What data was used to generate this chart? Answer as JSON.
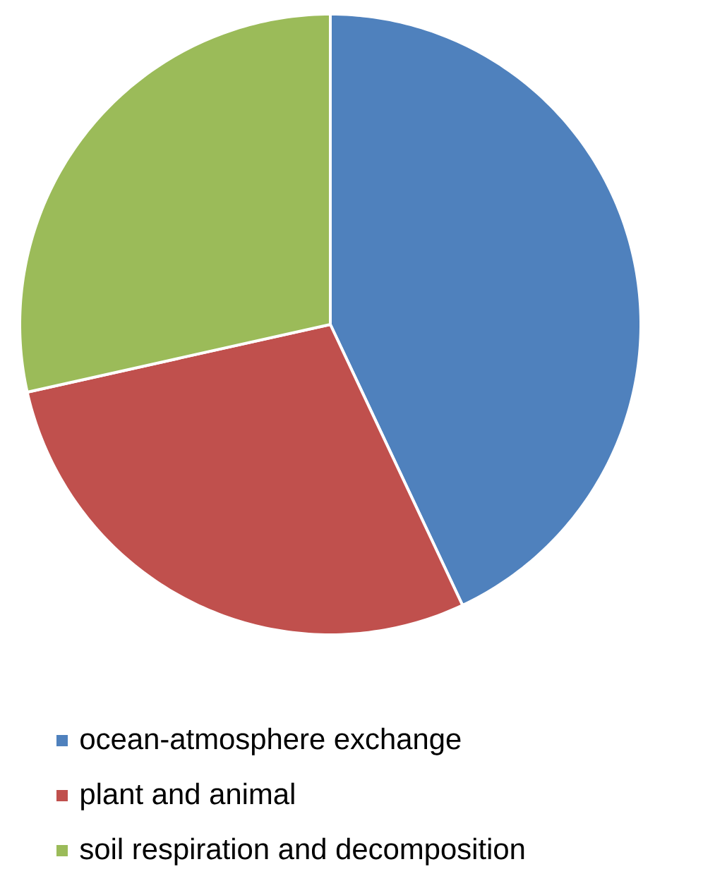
{
  "chart_data": {
    "type": "pie",
    "categories": [
      "ocean-atmosphere exchange",
      "plant and animal",
      "soil respiration and decomposition"
    ],
    "values": [
      43,
      28.5,
      28.5
    ],
    "colors": [
      "#4f81bd",
      "#c0504d",
      "#9bbb59"
    ],
    "legend": "bottom"
  }
}
